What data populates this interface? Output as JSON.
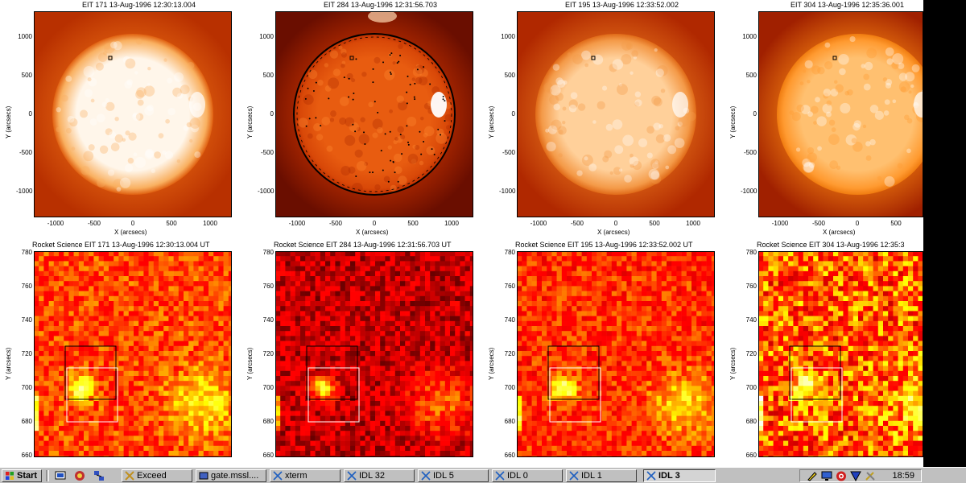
{
  "panels_top": [
    {
      "title": "EIT 171 13-Aug-1996 12:30:13.004"
    },
    {
      "title": "EIT 284 13-Aug-1996 12:31:56.703"
    },
    {
      "title": "EIT 195 13-Aug-1996 12:33:52.002"
    },
    {
      "title": "EIT 304 13-Aug-1996 12:35:36.001"
    }
  ],
  "panels_bottom": [
    {
      "title": "Rocket Science EIT 171 13-Aug-1996 12:30:13.004 UT"
    },
    {
      "title": "Rocket Science EIT 284 13-Aug-1996 12:31:56.703 UT"
    },
    {
      "title": "Rocket Science EIT 195 13-Aug-1996 12:33:52.002 UT"
    },
    {
      "title": "Rocket Science EIT 304 13-Aug-1996 12:35:3"
    }
  ],
  "top_axes": {
    "xlabel": "X (arcsecs)",
    "ylabel": "Y (arcsecs)",
    "xticks": [
      "-1000",
      "-500",
      "0",
      "500",
      "1000"
    ],
    "yticks": [
      "1000",
      "500",
      "0",
      "-500",
      "-1000"
    ]
  },
  "bottom_axes": {
    "ylabel": "Y (arcsecs)",
    "yticks": [
      "780",
      "760",
      "740",
      "720",
      "700",
      "680",
      "660"
    ]
  },
  "taskbar": {
    "start_label": "Start",
    "buttons": [
      {
        "label": "Exceed"
      },
      {
        "label": "gate.mssl...."
      },
      {
        "label": "xterm"
      },
      {
        "label": "IDL 32"
      },
      {
        "label": "IDL 5"
      },
      {
        "label": "IDL 0"
      },
      {
        "label": "IDL 1"
      },
      {
        "label": "IDL 3"
      }
    ],
    "clock": "18:59"
  }
}
